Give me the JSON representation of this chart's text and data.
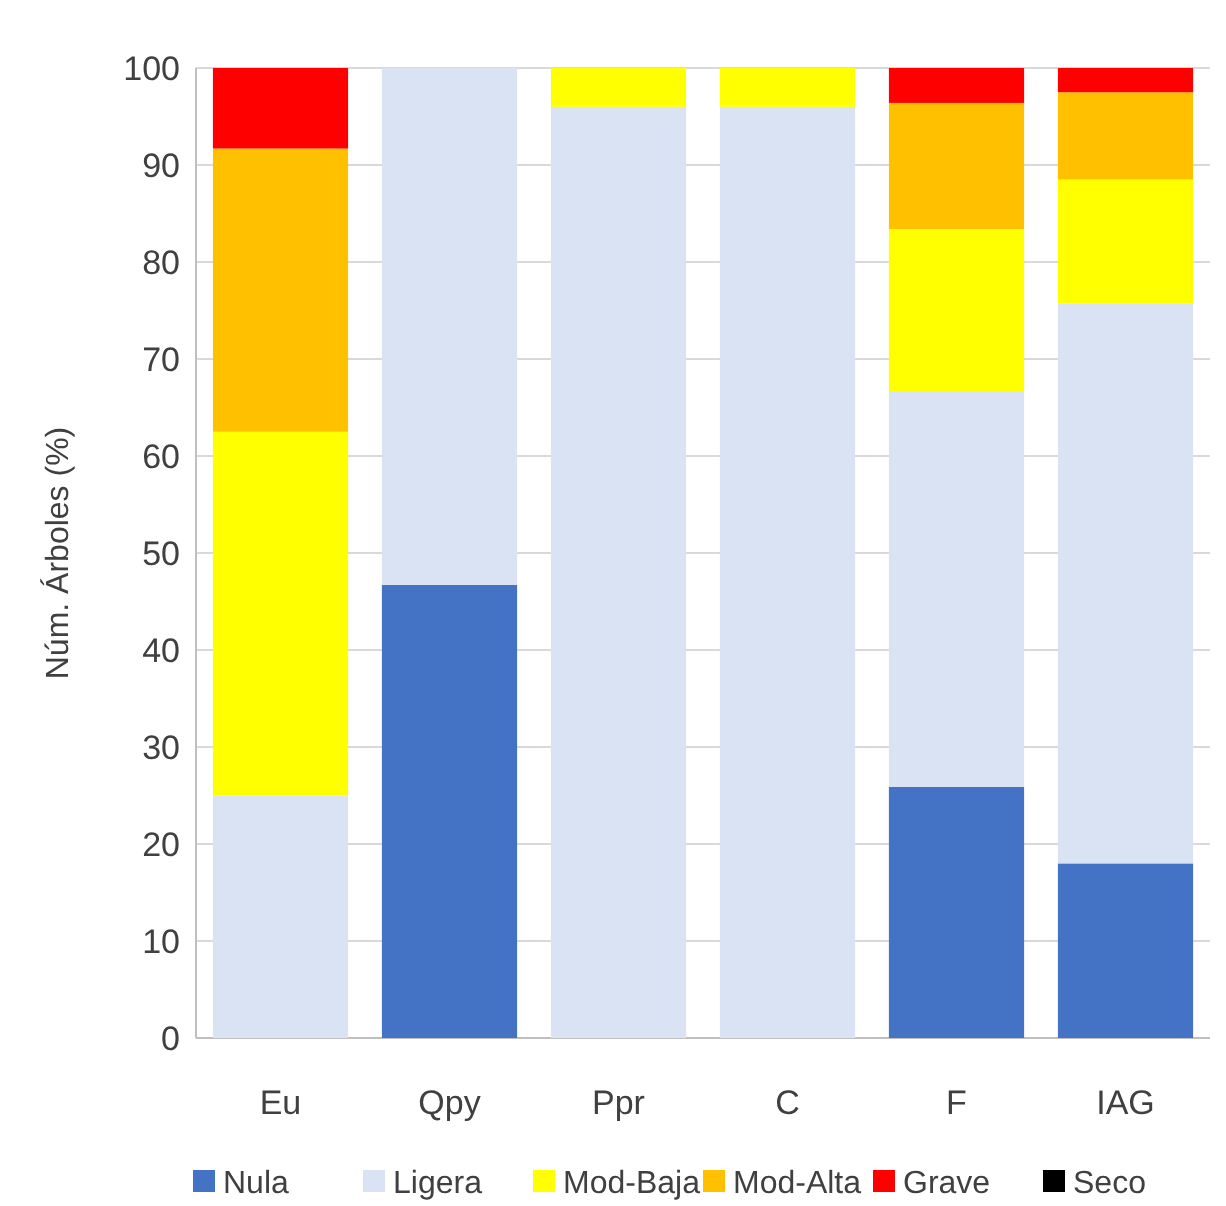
{
  "chart_data": {
    "type": "bar",
    "stacked": true,
    "ylabel": "Núm. Árboles (%)",
    "categories": [
      "Eu",
      "Qpy",
      "Ppr",
      "C",
      "F",
      "IAG"
    ],
    "series": [
      {
        "name": "Nula",
        "color": "#4472c4",
        "values": [
          0,
          46.7,
          0,
          0,
          25.9,
          18
        ]
      },
      {
        "name": "Ligera",
        "color": "#dae3f3",
        "values": [
          25,
          53.3,
          96,
          96,
          40.8,
          57.7
        ]
      },
      {
        "name": "Mod-Baja",
        "color": "#ffff00",
        "values": [
          37.5,
          0,
          4,
          4,
          16.7,
          12.8
        ]
      },
      {
        "name": "Mod-Alta",
        "color": "#ffc000",
        "values": [
          29.2,
          0,
          0,
          0,
          13,
          9
        ]
      },
      {
        "name": "Grave",
        "color": "#ff0000",
        "values": [
          8.3,
          0,
          0,
          0,
          3.6,
          2.5
        ]
      },
      {
        "name": "Seco",
        "color": "#000000",
        "values": [
          0,
          0,
          0,
          0,
          0,
          0
        ]
      }
    ],
    "ylim": [
      0,
      100
    ],
    "yticks": [
      0,
      10,
      20,
      30,
      40,
      50,
      60,
      70,
      80,
      90,
      100
    ],
    "grid": "y",
    "legend": "bottom"
  }
}
